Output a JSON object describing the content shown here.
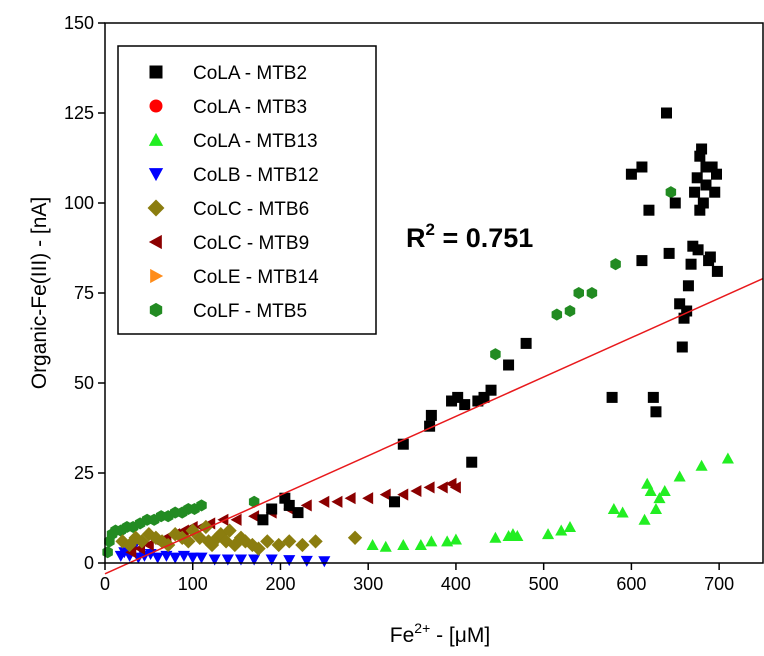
{
  "chart_data": {
    "type": "scatter",
    "xlabel": {
      "base": "Fe",
      "sup": "2+",
      "rest": " - [μM]"
    },
    "ylabel": "Organic-Fe(III) - [nA]",
    "xlim": [
      0,
      750
    ],
    "ylim": [
      0,
      150
    ],
    "x_ticks": [
      0,
      100,
      200,
      300,
      400,
      500,
      600,
      700
    ],
    "y_ticks": [
      0,
      25,
      50,
      75,
      100,
      125,
      150
    ],
    "legend_position": "top-left",
    "annotation": {
      "base": "R",
      "sup": "2",
      "rest": " = 0.751"
    },
    "fit_line": {
      "color": "#e8191c",
      "x": [
        0,
        750
      ],
      "y": [
        -3,
        79
      ]
    },
    "series": [
      {
        "name": "CoLA - MTB2",
        "marker": "square",
        "color": "#000000",
        "points": [
          [
            180,
            12
          ],
          [
            190,
            15
          ],
          [
            205,
            18
          ],
          [
            210,
            16
          ],
          [
            220,
            14
          ],
          [
            330,
            17
          ],
          [
            340,
            33
          ],
          [
            370,
            38
          ],
          [
            372,
            41
          ],
          [
            395,
            45
          ],
          [
            402,
            46
          ],
          [
            410,
            44
          ],
          [
            418,
            28
          ],
          [
            425,
            45
          ],
          [
            432,
            46
          ],
          [
            440,
            48
          ],
          [
            460,
            55
          ],
          [
            480,
            61
          ],
          [
            578,
            46
          ],
          [
            600,
            108
          ],
          [
            612,
            110
          ],
          [
            612,
            84
          ],
          [
            620,
            98
          ],
          [
            625,
            46
          ],
          [
            628,
            42
          ],
          [
            640,
            125
          ],
          [
            643,
            86
          ],
          [
            650,
            100
          ],
          [
            655,
            72
          ],
          [
            658,
            60
          ],
          [
            660,
            68
          ],
          [
            663,
            70
          ],
          [
            665,
            77
          ],
          [
            668,
            83
          ],
          [
            670,
            88
          ],
          [
            672,
            103
          ],
          [
            675,
            107
          ],
          [
            676,
            87
          ],
          [
            678,
            113
          ],
          [
            680,
            115
          ],
          [
            682,
            100
          ],
          [
            685,
            105
          ],
          [
            688,
            84
          ],
          [
            690,
            85
          ],
          [
            692,
            110
          ],
          [
            695,
            103
          ],
          [
            697,
            108
          ],
          [
            698,
            81
          ],
          [
            685,
            110
          ],
          [
            678,
            98
          ]
        ]
      },
      {
        "name": "CoLA - MTB3",
        "marker": "circle",
        "color": "#ff0000",
        "points": []
      },
      {
        "name": "CoLA - MTB13",
        "marker": "triangle-up",
        "color": "#22ee22",
        "points": [
          [
            305,
            5
          ],
          [
            320,
            4.5
          ],
          [
            340,
            5
          ],
          [
            360,
            5
          ],
          [
            372,
            6
          ],
          [
            390,
            6
          ],
          [
            400,
            6.5
          ],
          [
            445,
            7
          ],
          [
            460,
            7.5
          ],
          [
            465,
            8
          ],
          [
            470,
            7.5
          ],
          [
            505,
            8
          ],
          [
            520,
            9
          ],
          [
            530,
            10
          ],
          [
            580,
            15
          ],
          [
            590,
            14
          ],
          [
            615,
            12
          ],
          [
            618,
            22
          ],
          [
            622,
            20
          ],
          [
            628,
            15
          ],
          [
            632,
            18
          ],
          [
            638,
            20
          ],
          [
            655,
            24
          ],
          [
            680,
            27
          ],
          [
            710,
            29
          ]
        ]
      },
      {
        "name": "CoLB - MTB12",
        "marker": "triangle-down",
        "color": "#0000ff",
        "points": [
          [
            18,
            2
          ],
          [
            22,
            3
          ],
          [
            28,
            2
          ],
          [
            32,
            4
          ],
          [
            38,
            1.5
          ],
          [
            45,
            2
          ],
          [
            52,
            2.5
          ],
          [
            60,
            1.5
          ],
          [
            70,
            2
          ],
          [
            80,
            1.5
          ],
          [
            90,
            2
          ],
          [
            100,
            1.5
          ],
          [
            110,
            1.5
          ],
          [
            125,
            1
          ],
          [
            140,
            1
          ],
          [
            155,
            1
          ],
          [
            170,
            1
          ],
          [
            190,
            1
          ],
          [
            210,
            0.8
          ],
          [
            230,
            0.6
          ],
          [
            250,
            0.5
          ]
        ]
      },
      {
        "name": "CoLC - MTB6",
        "marker": "diamond",
        "color": "#8b7d0f",
        "points": [
          [
            20,
            6
          ],
          [
            28,
            5
          ],
          [
            35,
            7
          ],
          [
            42,
            6
          ],
          [
            50,
            8
          ],
          [
            58,
            7
          ],
          [
            65,
            6
          ],
          [
            72,
            5
          ],
          [
            80,
            8
          ],
          [
            88,
            7
          ],
          [
            95,
            6
          ],
          [
            100,
            9
          ],
          [
            108,
            7
          ],
          [
            115,
            10
          ],
          [
            118,
            6
          ],
          [
            122,
            5
          ],
          [
            128,
            7
          ],
          [
            132,
            8
          ],
          [
            138,
            6
          ],
          [
            142,
            9
          ],
          [
            148,
            5
          ],
          [
            155,
            7
          ],
          [
            160,
            6
          ],
          [
            168,
            5
          ],
          [
            175,
            4
          ],
          [
            185,
            6
          ],
          [
            198,
            5
          ],
          [
            210,
            6
          ],
          [
            225,
            5
          ],
          [
            240,
            6
          ],
          [
            285,
            7
          ]
        ]
      },
      {
        "name": "CoLC - MTB9",
        "marker": "triangle-left",
        "color": "#8b0000",
        "points": [
          [
            30,
            3
          ],
          [
            40,
            4
          ],
          [
            50,
            5
          ],
          [
            60,
            6
          ],
          [
            70,
            7
          ],
          [
            80,
            8
          ],
          [
            90,
            9
          ],
          [
            100,
            10
          ],
          [
            110,
            10
          ],
          [
            120,
            11
          ],
          [
            135,
            12
          ],
          [
            150,
            12
          ],
          [
            170,
            13
          ],
          [
            190,
            14
          ],
          [
            210,
            15
          ],
          [
            230,
            16
          ],
          [
            250,
            17
          ],
          [
            265,
            17
          ],
          [
            280,
            18
          ],
          [
            300,
            18
          ],
          [
            320,
            19
          ],
          [
            340,
            19
          ],
          [
            355,
            20
          ],
          [
            370,
            21
          ],
          [
            385,
            21
          ],
          [
            395,
            22
          ],
          [
            400,
            21
          ]
        ]
      },
      {
        "name": "CoLE - MTB14",
        "marker": "triangle-right",
        "color": "#ff8c1a",
        "points": []
      },
      {
        "name": "CoLF - MTB5",
        "marker": "hexagon",
        "color": "#228b22",
        "points": [
          [
            3,
            3
          ],
          [
            5,
            6
          ],
          [
            8,
            8
          ],
          [
            12,
            9
          ],
          [
            18,
            9
          ],
          [
            25,
            10
          ],
          [
            32,
            10
          ],
          [
            40,
            11
          ],
          [
            48,
            12
          ],
          [
            56,
            12
          ],
          [
            64,
            13
          ],
          [
            72,
            13
          ],
          [
            80,
            14
          ],
          [
            88,
            14
          ],
          [
            95,
            15
          ],
          [
            102,
            15
          ],
          [
            110,
            16
          ],
          [
            170,
            17
          ],
          [
            445,
            58
          ],
          [
            515,
            69
          ],
          [
            530,
            70
          ],
          [
            540,
            75
          ],
          [
            555,
            75
          ],
          [
            582,
            83
          ],
          [
            645,
            103
          ]
        ]
      }
    ]
  }
}
